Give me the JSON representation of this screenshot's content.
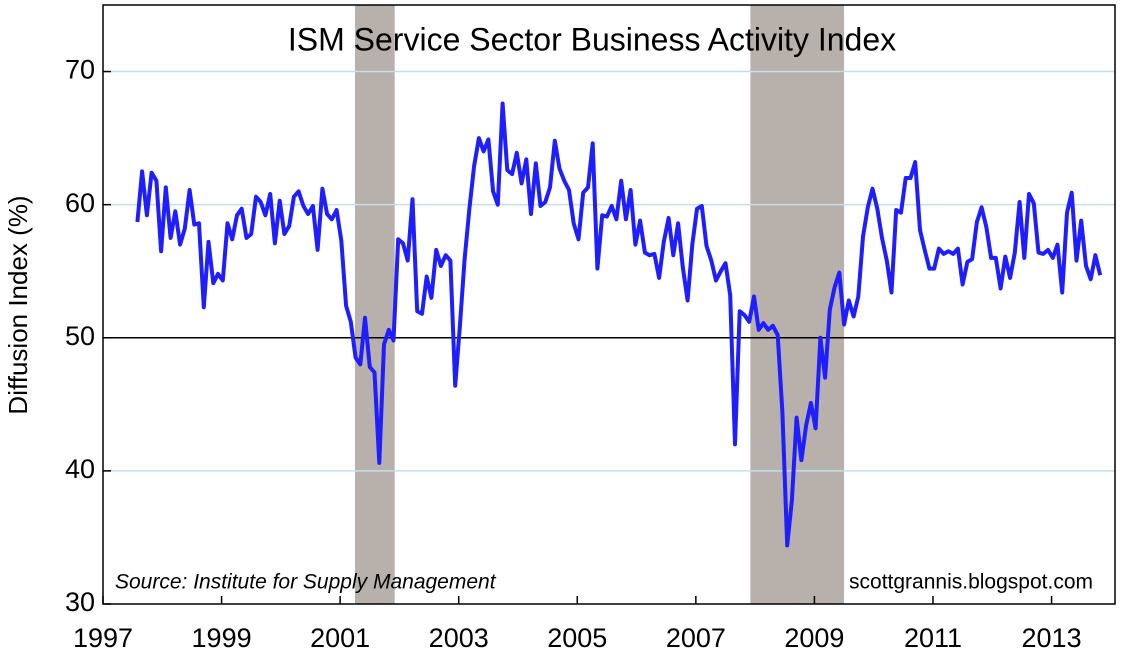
{
  "chart_data": {
    "type": "line",
    "title": "ISM Service Sector Business Activity Index",
    "y_label": "Diffusion Index (%)",
    "source": "Source:  Institute for Supply Management",
    "watermark": "scottgrannis.blogspot.com",
    "xlim": [
      1997,
      2014.07
    ],
    "xticks": [
      1997,
      1999,
      2001,
      2003,
      2005,
      2007,
      2009,
      2011,
      2013
    ],
    "ylim": [
      30,
      75
    ],
    "yticks": [
      30,
      40,
      50,
      60,
      70
    ],
    "grid": true,
    "grid_color": "#bfe0ee",
    "reference_line": 50,
    "recessions": [
      [
        2001.25,
        2001.92
      ],
      [
        2007.92,
        2009.5
      ]
    ],
    "recession_color": "#b8b0aa",
    "x": [
      1997.58,
      1997.66,
      1997.74,
      1997.82,
      1997.9,
      1997.98,
      1998.06,
      1998.14,
      1998.22,
      1998.3,
      1998.38,
      1998.46,
      1998.54,
      1998.62,
      1998.7,
      1998.78,
      1998.86,
      1998.94,
      1999.02,
      1999.1,
      1999.18,
      1999.26,
      1999.34,
      1999.42,
      1999.5,
      1999.58,
      1999.66,
      1999.74,
      1999.82,
      1999.9,
      1999.98,
      2000.06,
      2000.14,
      2000.22,
      2000.3,
      2000.38,
      2000.46,
      2000.54,
      2000.62,
      2000.7,
      2000.78,
      2000.86,
      2000.94,
      2001.02,
      2001.1,
      2001.18,
      2001.26,
      2001.34,
      2001.42,
      2001.5,
      2001.58,
      2001.66,
      2001.74,
      2001.82,
      2001.9,
      2001.98,
      2002.06,
      2002.14,
      2002.22,
      2002.3,
      2002.38,
      2002.46,
      2002.54,
      2002.62,
      2002.7,
      2002.78,
      2002.86,
      2002.94,
      2003.02,
      2003.1,
      2003.18,
      2003.26,
      2003.34,
      2003.42,
      2003.5,
      2003.58,
      2003.66,
      2003.74,
      2003.82,
      2003.9,
      2003.98,
      2004.06,
      2004.14,
      2004.22,
      2004.3,
      2004.38,
      2004.46,
      2004.54,
      2004.62,
      2004.7,
      2004.78,
      2004.86,
      2004.94,
      2005.02,
      2005.1,
      2005.18,
      2005.26,
      2005.34,
      2005.42,
      2005.5,
      2005.58,
      2005.66,
      2005.74,
      2005.82,
      2005.9,
      2005.98,
      2006.06,
      2006.14,
      2006.22,
      2006.3,
      2006.38,
      2006.46,
      2006.54,
      2006.62,
      2006.7,
      2006.78,
      2006.86,
      2006.94,
      2007.02,
      2007.1,
      2007.18,
      2007.26,
      2007.34,
      2007.42,
      2007.5,
      2007.58,
      2007.66,
      2007.74,
      2007.82,
      2007.9,
      2007.98,
      2008.06,
      2008.14,
      2008.22,
      2008.3,
      2008.38,
      2008.46,
      2008.54,
      2008.62,
      2008.7,
      2008.78,
      2008.86,
      2008.94,
      2009.02,
      2009.1,
      2009.18,
      2009.26,
      2009.34,
      2009.42,
      2009.5,
      2009.58,
      2009.66,
      2009.74,
      2009.82,
      2009.9,
      2009.98,
      2010.06,
      2010.14,
      2010.22,
      2010.3,
      2010.38,
      2010.46,
      2010.54,
      2010.62,
      2010.7,
      2010.78,
      2010.86,
      2010.94,
      2011.02,
      2011.1,
      2011.18,
      2011.26,
      2011.34,
      2011.42,
      2011.5,
      2011.58,
      2011.66,
      2011.74,
      2011.82,
      2011.9,
      2011.98,
      2012.06,
      2012.14,
      2012.22,
      2012.3,
      2012.38,
      2012.46,
      2012.54,
      2012.62,
      2012.7,
      2012.78,
      2012.86,
      2012.94,
      2013.02,
      2013.1,
      2013.18,
      2013.26,
      2013.34,
      2013.42,
      2013.5,
      2013.58,
      2013.66,
      2013.74,
      2013.82
    ],
    "series": [
      {
        "name": "ISM Service Sector Business Activity Index",
        "color": "#1e1eff",
        "values": [
          58.7,
          62.5,
          59.2,
          62.4,
          61.8,
          56.5,
          61.3,
          57.5,
          59.5,
          57.0,
          58.2,
          61.1,
          58.5,
          58.6,
          52.3,
          57.2,
          54.1,
          54.8,
          54.3,
          58.6,
          57.4,
          59.2,
          59.7,
          57.5,
          57.8,
          60.6,
          60.2,
          59.2,
          60.8,
          57.1,
          60.3,
          57.8,
          58.4,
          60.6,
          61.0,
          59.9,
          59.3,
          59.9,
          56.6,
          61.2,
          59.3,
          58.9,
          59.6,
          57.3,
          52.4,
          51.2,
          48.5,
          48.0,
          51.5,
          47.8,
          47.4,
          40.6,
          49.5,
          50.6,
          49.8,
          57.4,
          57.1,
          55.8,
          60.4,
          52.0,
          51.8,
          54.6,
          53.0,
          56.6,
          55.4,
          56.2,
          55.8,
          46.4,
          50.9,
          55.9,
          59.7,
          62.9,
          65.0,
          64.0,
          64.9,
          61.0,
          60.0,
          67.6,
          62.6,
          62.3,
          63.9,
          61.6,
          63.4,
          59.3,
          63.1,
          59.9,
          60.2,
          61.3,
          64.8,
          62.7,
          61.8,
          61.1,
          58.6,
          57.4,
          60.9,
          61.3,
          64.6,
          55.2,
          59.2,
          59.1,
          59.9,
          58.9,
          61.8,
          58.9,
          61.1,
          57.0,
          58.8,
          56.4,
          56.2,
          56.3,
          54.5,
          57.2,
          59.0,
          56.2,
          58.6,
          55.3,
          52.8,
          57.0,
          59.7,
          59.9,
          56.9,
          55.8,
          54.3,
          55.0,
          55.6,
          53.2,
          42.0,
          52.0,
          51.7,
          51.2,
          53.1,
          50.6,
          51.1,
          50.6,
          50.9,
          50.2,
          44.4,
          34.4,
          37.8,
          44.0,
          40.8,
          43.4,
          45.1,
          43.2,
          50.0,
          47.0,
          52.1,
          53.8,
          54.9,
          51.0,
          52.8,
          51.6,
          53.1,
          57.6,
          59.8,
          61.2,
          59.7,
          57.5,
          55.8,
          53.4,
          59.6,
          59.4,
          62.0,
          62.0,
          63.2,
          58.1,
          56.6,
          55.2,
          55.2,
          56.7,
          56.3,
          56.5,
          56.3,
          56.7,
          54.0,
          55.7,
          55.9,
          58.7,
          59.8,
          58.3,
          56.0,
          56.0,
          53.7,
          56.1,
          54.5,
          56.4,
          60.2,
          56.0,
          60.8,
          60.1,
          56.4,
          56.3,
          56.6,
          56.0,
          57.0,
          53.4,
          59.4,
          60.9,
          55.8,
          58.8,
          55.4,
          54.4,
          56.2,
          54.7
        ]
      }
    ]
  }
}
